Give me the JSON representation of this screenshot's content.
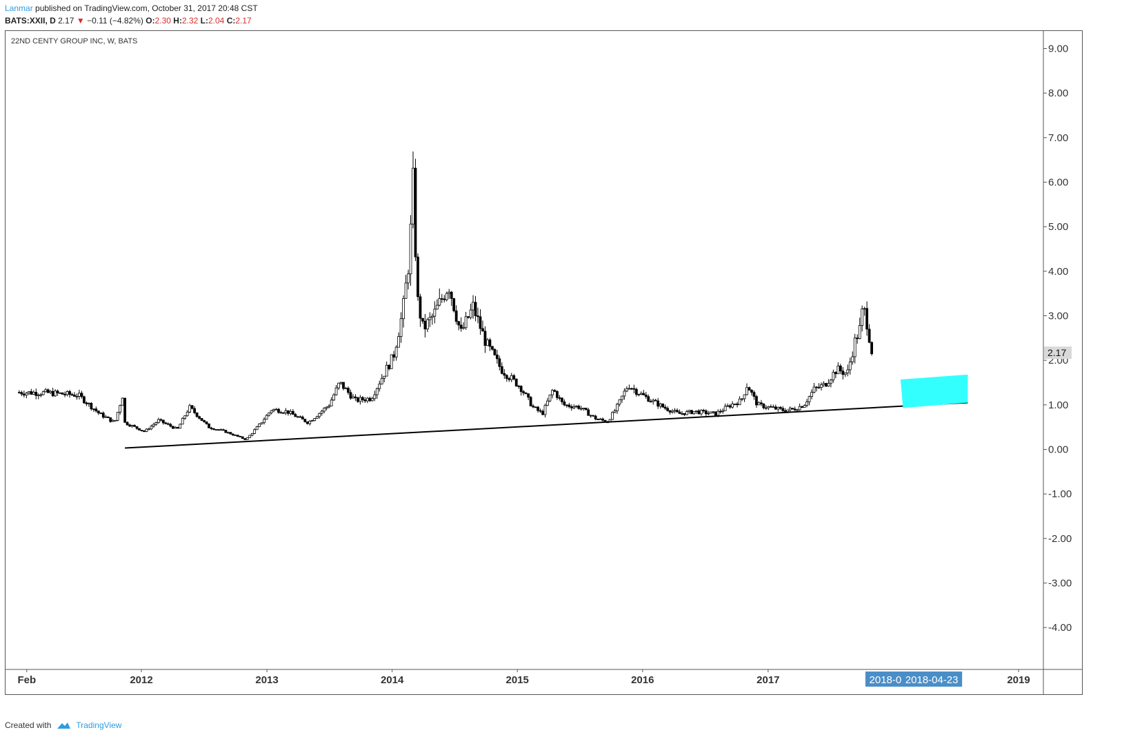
{
  "header": {
    "author": "Lanmar",
    "published_text": " published on TradingView.com, October 31, 2017 20:48 CST",
    "symbol": "BATS:XXII, D",
    "last": "2.17",
    "change_arrow": "▼",
    "change": "−0.11 (−4.82%)",
    "o_label": "O:",
    "o_value": "2.30",
    "h_label": "H:",
    "h_value": "2.32",
    "l_label": "L:",
    "l_value": "2.04",
    "c_label": "C:",
    "c_value": "2.17"
  },
  "footer": {
    "created_with": "Created with",
    "brand": "TradingView"
  },
  "colors": {
    "candle": "#000000",
    "trendline": "#000000",
    "target_box": "#33ffff",
    "axis_badge": "#4a8ec8",
    "price_badge": "#d9d9d9"
  },
  "chart_data": {
    "type": "candlestick",
    "title": "22ND CENTY GROUP INC, W, BATS",
    "ylim": [
      -5.0,
      9.3
    ],
    "y_ticks": [
      "9.00",
      "8.00",
      "7.00",
      "6.00",
      "5.00",
      "4.00",
      "3.00",
      "2.00",
      "1.00",
      "0.00",
      "-1.00",
      "-2.00",
      "-3.00",
      "-4.00"
    ],
    "x_ticks": [
      {
        "label": "Feb",
        "date": "2011-02-01"
      },
      {
        "label": "2012",
        "date": "2012-01-01"
      },
      {
        "label": "2013",
        "date": "2013-01-01"
      },
      {
        "label": "2014",
        "date": "2014-01-01"
      },
      {
        "label": "2015",
        "date": "2015-01-01"
      },
      {
        "label": "2016",
        "date": "2016-01-01"
      },
      {
        "label": "2017",
        "date": "2017-01-01"
      },
      {
        "label": "2019",
        "date": "2019-01-01"
      }
    ],
    "x_badges": [
      {
        "label": "2018-01-08",
        "date": "2018-01-08"
      },
      {
        "label": "2018-04-23",
        "date": "2018-04-23"
      }
    ],
    "last_price": "2.17",
    "trendline": {
      "start": {
        "date": "2011-11-14",
        "price": 0.03
      },
      "end": {
        "date": "2018-08-06",
        "price": 1.05
      }
    },
    "target_zone": [
      {
        "date": "2018-01-22",
        "price": 1.57
      },
      {
        "date": "2018-08-06",
        "price": 1.68
      },
      {
        "date": "2018-08-06",
        "price": 1.05
      },
      {
        "date": "2018-01-29",
        "price": 0.93
      }
    ],
    "weekly_close_anchors": [
      {
        "date": "2011-01-10",
        "price": 1.28
      },
      {
        "date": "2011-04-01",
        "price": 1.27
      },
      {
        "date": "2011-07-01",
        "price": 1.22
      },
      {
        "date": "2011-09-01",
        "price": 0.8
      },
      {
        "date": "2011-10-15",
        "price": 0.6
      },
      {
        "date": "2011-11-07",
        "price": 1.2
      },
      {
        "date": "2011-11-14",
        "price": 0.6
      },
      {
        "date": "2012-01-10",
        "price": 0.4
      },
      {
        "date": "2012-02-20",
        "price": 0.65
      },
      {
        "date": "2012-04-15",
        "price": 0.45
      },
      {
        "date": "2012-05-20",
        "price": 0.95
      },
      {
        "date": "2012-07-15",
        "price": 0.5
      },
      {
        "date": "2012-09-01",
        "price": 0.4
      },
      {
        "date": "2012-11-01",
        "price": 0.22
      },
      {
        "date": "2012-12-10",
        "price": 0.55
      },
      {
        "date": "2013-01-15",
        "price": 0.9
      },
      {
        "date": "2013-03-01",
        "price": 0.85
      },
      {
        "date": "2013-05-01",
        "price": 0.6
      },
      {
        "date": "2013-07-01",
        "price": 1.0
      },
      {
        "date": "2013-08-01",
        "price": 1.5
      },
      {
        "date": "2013-09-15",
        "price": 1.1
      },
      {
        "date": "2013-11-01",
        "price": 1.15
      },
      {
        "date": "2013-12-01",
        "price": 1.6
      },
      {
        "date": "2014-01-05",
        "price": 2.1
      },
      {
        "date": "2014-02-01",
        "price": 3.1
      },
      {
        "date": "2014-02-20",
        "price": 4.3
      },
      {
        "date": "2014-03-03",
        "price": 6.0
      },
      {
        "date": "2014-03-15",
        "price": 3.4
      },
      {
        "date": "2014-04-01",
        "price": 2.7
      },
      {
        "date": "2014-05-01",
        "price": 3.0
      },
      {
        "date": "2014-06-15",
        "price": 3.7
      },
      {
        "date": "2014-07-20",
        "price": 2.6
      },
      {
        "date": "2014-08-25",
        "price": 3.2
      },
      {
        "date": "2014-10-01",
        "price": 2.4
      },
      {
        "date": "2014-11-15",
        "price": 1.8
      },
      {
        "date": "2015-01-10",
        "price": 1.4
      },
      {
        "date": "2015-02-15",
        "price": 0.95
      },
      {
        "date": "2015-03-15",
        "price": 0.8
      },
      {
        "date": "2015-04-15",
        "price": 1.35
      },
      {
        "date": "2015-05-15",
        "price": 1.0
      },
      {
        "date": "2015-07-01",
        "price": 0.95
      },
      {
        "date": "2015-08-15",
        "price": 0.7
      },
      {
        "date": "2015-09-20",
        "price": 0.62
      },
      {
        "date": "2015-10-15",
        "price": 0.9
      },
      {
        "date": "2015-11-20",
        "price": 1.45
      },
      {
        "date": "2015-12-15",
        "price": 1.3
      },
      {
        "date": "2016-01-15",
        "price": 1.15
      },
      {
        "date": "2016-03-01",
        "price": 0.95
      },
      {
        "date": "2016-04-15",
        "price": 0.8
      },
      {
        "date": "2016-06-01",
        "price": 0.85
      },
      {
        "date": "2016-08-01",
        "price": 0.8
      },
      {
        "date": "2016-09-15",
        "price": 1.0
      },
      {
        "date": "2016-10-15",
        "price": 1.1
      },
      {
        "date": "2016-11-01",
        "price": 1.45
      },
      {
        "date": "2016-12-01",
        "price": 1.0
      },
      {
        "date": "2017-01-01",
        "price": 0.95
      },
      {
        "date": "2017-02-15",
        "price": 0.88
      },
      {
        "date": "2017-03-15",
        "price": 0.9
      },
      {
        "date": "2017-04-15",
        "price": 1.0
      },
      {
        "date": "2017-05-15",
        "price": 1.35
      },
      {
        "date": "2017-06-15",
        "price": 1.45
      },
      {
        "date": "2017-07-20",
        "price": 1.8
      },
      {
        "date": "2017-08-20",
        "price": 1.7
      },
      {
        "date": "2017-09-10",
        "price": 2.4
      },
      {
        "date": "2017-09-25",
        "price": 2.7
      },
      {
        "date": "2017-10-05",
        "price": 3.2
      },
      {
        "date": "2017-10-15",
        "price": 2.9
      },
      {
        "date": "2017-10-31",
        "price": 2.17
      }
    ]
  }
}
